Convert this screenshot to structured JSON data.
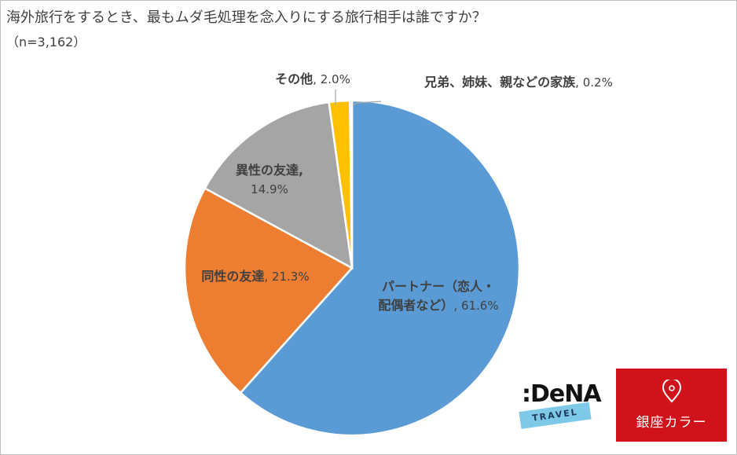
{
  "title": "海外旅行をするとき、最もムダ毛処理を念入りにする旅行相手は誰ですか？",
  "subtitle": "（n=3,162）",
  "chart_data": {
    "type": "pie",
    "title": "海外旅行をするとき、最もムダ毛処理を念入りにする旅行相手は誰ですか？",
    "subtitle": "（n=3,162）",
    "unit": "%",
    "slices": [
      {
        "label_lines": [
          "パートナー（恋人・",
          "配偶者など）"
        ],
        "label": "パートナー（恋人・配偶者など）",
        "value": 61.6,
        "value_text": "61.6%",
        "color": "#5b9bd5"
      },
      {
        "label_lines": [
          "同性の友達"
        ],
        "label": "同性の友達",
        "value": 21.3,
        "value_text": "21.3%",
        "color": "#ed7d31"
      },
      {
        "label_lines": [
          "異性の友達"
        ],
        "label": "異性の友達",
        "value": 14.9,
        "value_text": "14.9%",
        "color": "#a5a5a5"
      },
      {
        "label_lines": [
          "その他"
        ],
        "label": "その他",
        "value": 2.0,
        "value_text": "2.0%",
        "color": "#ffc000"
      },
      {
        "label_lines": [
          "兄弟、姉妹、親などの家族"
        ],
        "label": "兄弟、姉妹、親などの家族",
        "value": 0.2,
        "value_text": "0.2%",
        "color": "#4472c4"
      }
    ]
  },
  "logos": {
    "dena_word": ":DeNA",
    "dena_sub": "TRAVEL",
    "ginza_text": "銀座カラー"
  }
}
